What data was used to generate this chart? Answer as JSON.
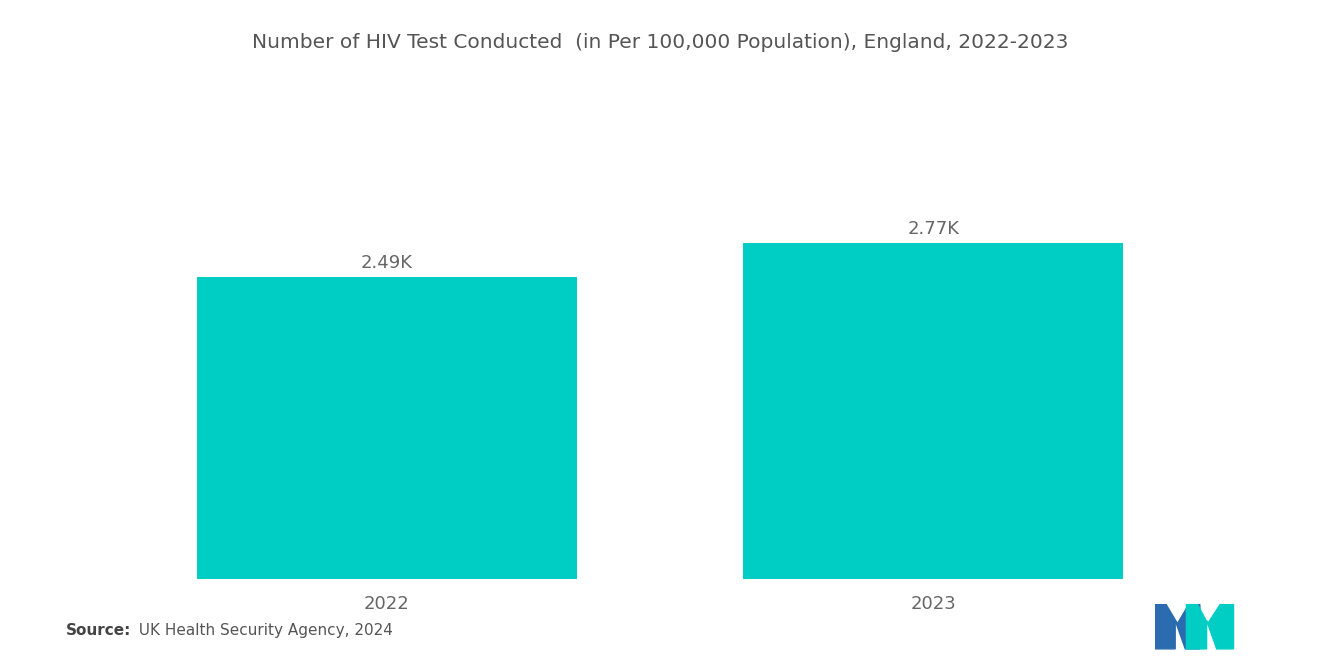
{
  "title": "Number of HIV Test Conducted  (in Per 100,000 Population), England, 2022-2023",
  "categories": [
    "2022",
    "2023"
  ],
  "values": [
    2490,
    2770
  ],
  "labels": [
    "2.49K",
    "2.77K"
  ],
  "bar_color": "#00CEC4",
  "background_color": "#ffffff",
  "title_fontsize": 14.5,
  "label_fontsize": 13,
  "tick_fontsize": 13,
  "source_bold": "Source:",
  "source_rest": "  UK Health Security Agency, 2024",
  "ylim": [
    0,
    3400
  ],
  "bar_width": 0.32,
  "x_positions": [
    0.27,
    0.73
  ],
  "xlim": [
    0.0,
    1.0
  ],
  "logo_blue": "#2B6CB0",
  "logo_teal": "#00CEC4"
}
